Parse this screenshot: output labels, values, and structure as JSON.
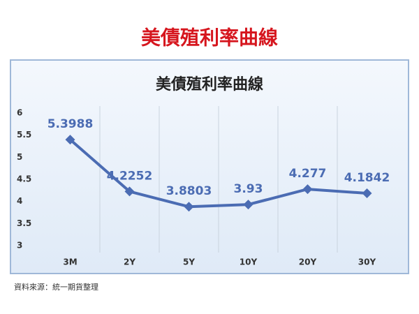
{
  "page_title": "美債殖利率曲線",
  "chart_data": {
    "type": "line",
    "title": "美債殖利率曲線",
    "categories": [
      "3M",
      "2Y",
      "5Y",
      "10Y",
      "20Y",
      "30Y"
    ],
    "series": [
      {
        "name": "",
        "color": "#4b6cb3",
        "values": [
          5.3988,
          4.2252,
          3.8803,
          3.93,
          4.277,
          4.1842
        ]
      }
    ],
    "ylim": [
      3,
      6
    ],
    "yticks": [
      3,
      3.5,
      4,
      4.5,
      5,
      5.5,
      6
    ],
    "grid": "x"
  },
  "source": "資料來源：統一期貨整理"
}
